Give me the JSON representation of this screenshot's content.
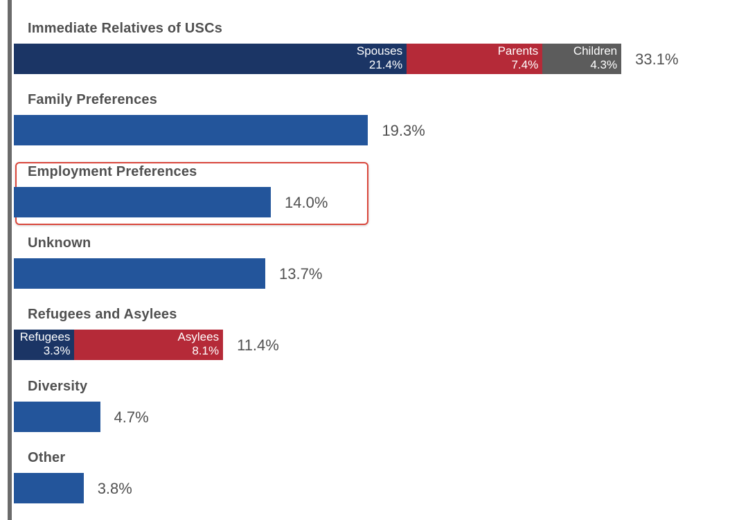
{
  "chart_data": {
    "type": "bar",
    "orientation": "horizontal",
    "stacked": true,
    "unit": "%",
    "categories": [
      "Immediate Relatives of USCs",
      "Family Preferences",
      "Employment Preferences",
      "Unknown",
      "Refugees and Asylees",
      "Diversity",
      "Other"
    ],
    "totals": [
      "33.1%",
      "19.3%",
      "14.0%",
      "13.7%",
      "11.4%",
      "4.7%",
      "3.8%"
    ],
    "values": [
      33.1,
      19.3,
      14.0,
      13.7,
      11.4,
      4.7,
      3.8
    ],
    "segments": [
      [
        {
          "name": "Spouses",
          "label": "21.4%",
          "value": 21.4,
          "color": "#1b3565"
        },
        {
          "name": "Parents",
          "label": "7.4%",
          "value": 7.4,
          "color": "#b52a38"
        },
        {
          "name": "Children",
          "label": "4.3%",
          "value": 4.3,
          "color": "#5c5c5c"
        }
      ],
      [
        {
          "name": "",
          "label": "",
          "value": 19.3,
          "color": "#23559b"
        }
      ],
      [
        {
          "name": "",
          "label": "",
          "value": 14.0,
          "color": "#23559b"
        }
      ],
      [
        {
          "name": "",
          "label": "",
          "value": 13.7,
          "color": "#23559b"
        }
      ],
      [
        {
          "name": "Refugees",
          "label": "3.3%",
          "value": 3.3,
          "color": "#1b3565"
        },
        {
          "name": "Asylees",
          "label": "8.1%",
          "value": 8.1,
          "color": "#b52a38"
        }
      ],
      [
        {
          "name": "",
          "label": "",
          "value": 4.7,
          "color": "#23559b"
        }
      ],
      [
        {
          "name": "",
          "label": "",
          "value": 3.8,
          "color": "#23559b"
        }
      ]
    ],
    "highlighted_category": "Employment Preferences",
    "highlight_color": "#d9453a"
  }
}
